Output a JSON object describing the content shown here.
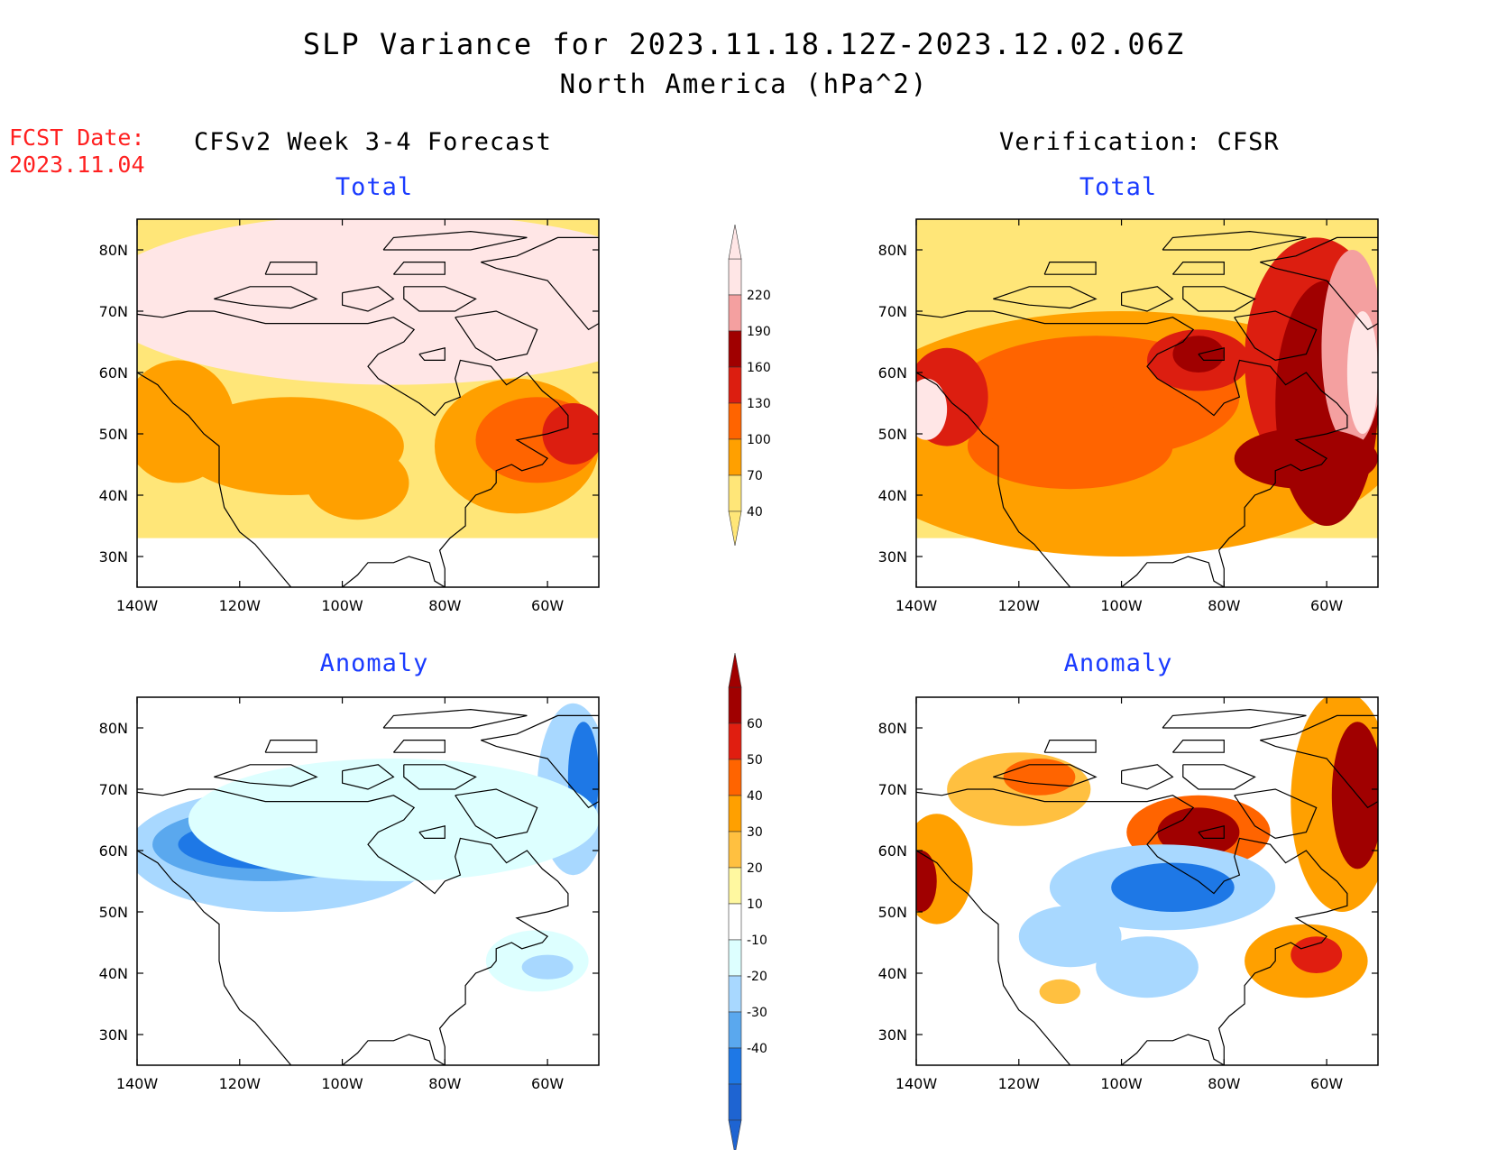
{
  "header": {
    "title": "SLP Variance for 2023.11.18.12Z-2023.12.02.06Z",
    "subtitle": "North America (hPa^2)",
    "fcst_label": "FCST Date:",
    "fcst_date": "2023.11.04",
    "left_header": "CFSv2 Week 3-4 Forecast",
    "right_header": "Verification: CFSR"
  },
  "axes": {
    "lon_labels": [
      "140W",
      "120W",
      "100W",
      "80W",
      "60W"
    ],
    "lon_values": [
      -140,
      -120,
      -100,
      -80,
      -60
    ],
    "lat_labels": [
      "80N",
      "70N",
      "60N",
      "50N",
      "40N",
      "30N"
    ],
    "lat_values": [
      80,
      70,
      60,
      50,
      40,
      30
    ],
    "lon_range": [
      -140,
      -50
    ],
    "lat_range": [
      25,
      85
    ]
  },
  "colors": {
    "title_blue": "#1a3bff",
    "fcst_red": "#ff2020"
  },
  "colorbars": {
    "total": {
      "labels": [
        "220",
        "190",
        "160",
        "130",
        "100",
        "70",
        "40"
      ],
      "colors": [
        "#ffe6e6",
        "#f4a0a0",
        "#a00000",
        "#dc1e10",
        "#ff6400",
        "#ffa000",
        "#ffe678"
      ]
    },
    "anomaly": {
      "labels": [
        "60",
        "50",
        "40",
        "30",
        "20",
        "10",
        "-10",
        "-20",
        "-30",
        "-40"
      ],
      "colors": [
        "#a00000",
        "#e01e10",
        "#ff6400",
        "#ffa000",
        "#ffc040",
        "#fff8a0",
        "#ffffff",
        "#ddffff",
        "#a8d8ff",
        "#5aa8ee",
        "#1e78e6",
        "#1e64d2"
      ]
    }
  },
  "panels": [
    {
      "title": "Total",
      "colorbar": "total",
      "blobs": [
        {
          "lon": -90,
          "lat": 72,
          "rx": 58,
          "ry": 14,
          "c": 0
        },
        {
          "lon": -110,
          "lat": 48,
          "rx": 22,
          "ry": 8,
          "c": 5
        },
        {
          "lon": -132,
          "lat": 52,
          "rx": 11,
          "ry": 10,
          "c": 5
        },
        {
          "lon": -97,
          "lat": 42,
          "rx": 10,
          "ry": 6,
          "c": 5
        },
        {
          "lon": -66,
          "lat": 48,
          "rx": 16,
          "ry": 11,
          "c": 5
        },
        {
          "lon": -62,
          "lat": 49,
          "rx": 12,
          "ry": 7,
          "c": 4
        },
        {
          "lon": -55,
          "lat": 50,
          "rx": 6,
          "ry": 5,
          "c": 3
        }
      ]
    },
    {
      "title": "Total",
      "colorbar": "total",
      "blobs": [
        {
          "lon": -100,
          "lat": 50,
          "rx": 55,
          "ry": 20,
          "c": 5
        },
        {
          "lon": -105,
          "lat": 56,
          "rx": 28,
          "ry": 10,
          "c": 4
        },
        {
          "lon": -110,
          "lat": 48,
          "rx": 20,
          "ry": 7,
          "c": 4
        },
        {
          "lon": -85,
          "lat": 62,
          "rx": 10,
          "ry": 5,
          "c": 3
        },
        {
          "lon": -85,
          "lat": 63,
          "rx": 5,
          "ry": 3,
          "c": 2
        },
        {
          "lon": -134,
          "lat": 56,
          "rx": 8,
          "ry": 8,
          "c": 3
        },
        {
          "lon": -138,
          "lat": 54,
          "rx": 4,
          "ry": 5,
          "c": 0
        },
        {
          "lon": -62,
          "lat": 62,
          "rx": 14,
          "ry": 20,
          "c": 3
        },
        {
          "lon": -60,
          "lat": 55,
          "rx": 10,
          "ry": 20,
          "c": 2
        },
        {
          "lon": -55,
          "lat": 64,
          "rx": 6,
          "ry": 16,
          "c": 1
        },
        {
          "lon": -53,
          "lat": 60,
          "rx": 3,
          "ry": 10,
          "c": 0
        },
        {
          "lon": -64,
          "lat": 46,
          "rx": 14,
          "ry": 5,
          "c": 2
        }
      ]
    },
    {
      "title": "Anomaly",
      "colorbar": "anomaly",
      "blobs": [
        {
          "lon": -112,
          "lat": 60,
          "rx": 30,
          "ry": 10,
          "c": 8
        },
        {
          "lon": -115,
          "lat": 61,
          "rx": 22,
          "ry": 6,
          "c": 9
        },
        {
          "lon": -115,
          "lat": 61,
          "rx": 17,
          "ry": 4,
          "c": 10
        },
        {
          "lon": -55,
          "lat": 70,
          "rx": 7,
          "ry": 14,
          "c": 8
        },
        {
          "lon": -53,
          "lat": 72,
          "rx": 3,
          "ry": 9,
          "c": 10
        },
        {
          "lon": -90,
          "lat": 65,
          "rx": 40,
          "ry": 10,
          "c": 7
        },
        {
          "lon": -62,
          "lat": 42,
          "rx": 10,
          "ry": 5,
          "c": 7
        },
        {
          "lon": -60,
          "lat": 41,
          "rx": 5,
          "ry": 2,
          "c": 8
        }
      ]
    },
    {
      "title": "Anomaly",
      "colorbar": "anomaly",
      "blobs": [
        {
          "lon": -120,
          "lat": 70,
          "rx": 14,
          "ry": 6,
          "c": 4
        },
        {
          "lon": -116,
          "lat": 72,
          "rx": 7,
          "ry": 3,
          "c": 2
        },
        {
          "lon": -136,
          "lat": 57,
          "rx": 7,
          "ry": 9,
          "c": 3
        },
        {
          "lon": -139,
          "lat": 55,
          "rx": 3,
          "ry": 5,
          "c": 0
        },
        {
          "lon": -85,
          "lat": 63,
          "rx": 14,
          "ry": 6,
          "c": 2
        },
        {
          "lon": -85,
          "lat": 63,
          "rx": 8,
          "ry": 4,
          "c": 0
        },
        {
          "lon": -57,
          "lat": 68,
          "rx": 10,
          "ry": 18,
          "c": 3
        },
        {
          "lon": -54,
          "lat": 69,
          "rx": 5,
          "ry": 12,
          "c": 0
        },
        {
          "lon": -64,
          "lat": 42,
          "rx": 12,
          "ry": 6,
          "c": 3
        },
        {
          "lon": -62,
          "lat": 43,
          "rx": 5,
          "ry": 3,
          "c": 1
        },
        {
          "lon": -92,
          "lat": 54,
          "rx": 22,
          "ry": 7,
          "c": 8
        },
        {
          "lon": -90,
          "lat": 54,
          "rx": 12,
          "ry": 4,
          "c": 10
        },
        {
          "lon": -110,
          "lat": 46,
          "rx": 10,
          "ry": 5,
          "c": 8
        },
        {
          "lon": -95,
          "lat": 41,
          "rx": 10,
          "ry": 5,
          "c": 8
        },
        {
          "lon": -112,
          "lat": 37,
          "rx": 4,
          "ry": 2,
          "c": 4
        }
      ]
    }
  ]
}
